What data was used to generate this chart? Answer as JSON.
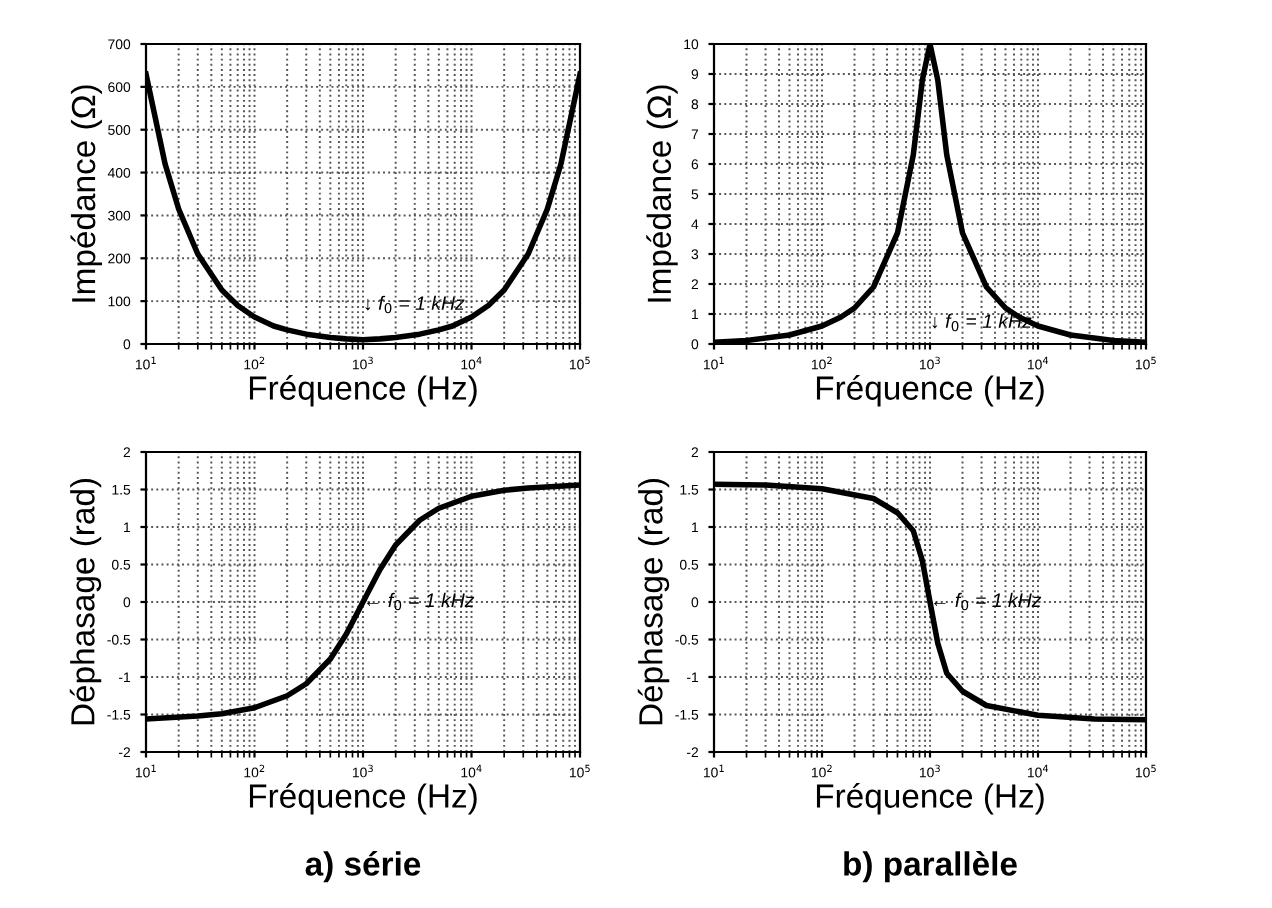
{
  "chart_data": [
    {
      "type": "line",
      "xlabel": "Fréquence (Hz)",
      "ylabel": "Impédance (Ω)",
      "log": "x",
      "grid": true,
      "marker": "none",
      "line_style": "solid",
      "xlim": [
        10,
        100000
      ],
      "xticks": [
        {
          "value": 10,
          "label": "10$^{1}$"
        },
        {
          "value": 100,
          "label": "10$^{2}$"
        },
        {
          "value": 1000,
          "label": "10$^{3}$"
        },
        {
          "value": 10000,
          "label": "10$^{4}$"
        },
        {
          "value": 100000,
          "label": "10$^{5}$"
        }
      ],
      "ylim": [
        0,
        700
      ],
      "yticks": [
        0,
        100,
        200,
        300,
        400,
        500,
        600,
        700
      ],
      "annotations": [
        "↓ f$_{0}$ = 1 kHz"
      ],
      "x": [
        10,
        15,
        20,
        30,
        50,
        70,
        100,
        150,
        200,
        300,
        500,
        700,
        1000,
        1430,
        2000,
        3330,
        5000,
        6670,
        10000,
        14300,
        20000,
        33300,
        50000,
        66700,
        100000
      ],
      "series": [
        {
          "color": "#000000",
          "values": [
            630,
            420,
            315,
            210,
            126,
            90,
            63,
            42,
            33,
            23,
            15,
            12,
            10,
            12,
            15,
            23,
            33,
            42,
            63,
            90,
            126,
            210,
            315,
            420,
            630
          ]
        }
      ]
    },
    {
      "type": "line",
      "xlabel": "Fréquence (Hz)",
      "ylabel": "Impédance (Ω)",
      "log": "x",
      "grid": true,
      "marker": "none",
      "line_style": "solid",
      "xlim": [
        10,
        100000
      ],
      "xticks": [
        {
          "value": 10,
          "label": "10$^{1}$"
        },
        {
          "value": 100,
          "label": "10$^{2}$"
        },
        {
          "value": 1000,
          "label": "10$^{3}$"
        },
        {
          "value": 10000,
          "label": "10$^{4}$"
        },
        {
          "value": 100000,
          "label": "10$^{5}$"
        }
      ],
      "ylim": [
        0,
        10
      ],
      "yticks": [
        0,
        1,
        2,
        3,
        4,
        5,
        6,
        7,
        8,
        9,
        10
      ],
      "annotations": [
        "↓ f$_{0}$ = 1 kHz"
      ],
      "x": [
        10,
        20,
        50,
        100,
        150,
        200,
        300,
        500,
        700,
        850,
        1000,
        1180,
        1430,
        2000,
        3330,
        5000,
        6670,
        10000,
        20000,
        50000,
        100000
      ],
      "series": [
        {
          "color": "#000000",
          "values": [
            0.06,
            0.12,
            0.3,
            0.6,
            0.9,
            1.2,
            1.9,
            3.7,
            6.3,
            8.8,
            10,
            8.8,
            6.3,
            3.7,
            1.9,
            1.2,
            0.9,
            0.6,
            0.3,
            0.12,
            0.06
          ]
        }
      ]
    },
    {
      "type": "line",
      "xlabel": "Fréquence (Hz)",
      "ylabel": "Déphasage (rad)",
      "log": "x",
      "grid": true,
      "marker": "none",
      "line_style": "solid",
      "xlim": [
        10,
        100000
      ],
      "xticks": [
        {
          "value": 10,
          "label": "10$^{1}$"
        },
        {
          "value": 100,
          "label": "10$^{2}$"
        },
        {
          "value": 1000,
          "label": "10$^{3}$"
        },
        {
          "value": 10000,
          "label": "10$^{4}$"
        },
        {
          "value": 100000,
          "label": "10$^{5}$"
        }
      ],
      "ylim": [
        -2,
        2
      ],
      "yticks": [
        -2,
        -1.5,
        -1,
        -0.5,
        0,
        0.5,
        1,
        1.5,
        2
      ],
      "annotations": [
        {
          "text": "← f$_{0}$ = 1 kHz",
          "x": 1000,
          "y": 0
        },
        "a) série"
      ],
      "x": [
        10,
        30,
        50,
        100,
        200,
        300,
        500,
        700,
        1000,
        1430,
        2000,
        3330,
        5000,
        10000,
        20000,
        33300,
        100000
      ],
      "series": [
        {
          "color": "#000000",
          "values": [
            -1.56,
            -1.52,
            -1.49,
            -1.41,
            -1.25,
            -1.09,
            -0.76,
            -0.43,
            0,
            0.43,
            0.76,
            1.09,
            1.25,
            1.41,
            1.49,
            1.52,
            1.56
          ]
        }
      ]
    },
    {
      "type": "line",
      "xlabel": "Fréquence (Hz)",
      "ylabel": "Déphasage (rad)",
      "log": "x",
      "grid": true,
      "marker": "none",
      "line_style": "solid",
      "xlim": [
        10,
        100000
      ],
      "xticks": [
        {
          "value": 10,
          "label": "10$^{1}$"
        },
        {
          "value": 100,
          "label": "10$^{2}$"
        },
        {
          "value": 1000,
          "label": "10$^{3}$"
        },
        {
          "value": 10000,
          "label": "10$^{4}$"
        },
        {
          "value": 100000,
          "label": "10$^{5}$"
        }
      ],
      "ylim": [
        -2,
        2
      ],
      "yticks": [
        -2,
        -1.5,
        -1,
        -0.5,
        0,
        0.5,
        1,
        1.5,
        2
      ],
      "annotations": [
        {
          "text": "← f$_{0}$ = 1 kHz",
          "x": 1000,
          "y": 0
        },
        "b) parallèle"
      ],
      "x": [
        10,
        30,
        100,
        300,
        500,
        700,
        850,
        1000,
        1180,
        1430,
        2000,
        3330,
        10000,
        33300,
        100000
      ],
      "series": [
        {
          "color": "#000000",
          "values": [
            1.57,
            1.56,
            1.51,
            1.38,
            1.19,
            0.95,
            0.55,
            0,
            -0.55,
            -0.95,
            -1.19,
            -1.38,
            -1.51,
            -1.56,
            -1.57
          ]
        }
      ]
    }
  ]
}
